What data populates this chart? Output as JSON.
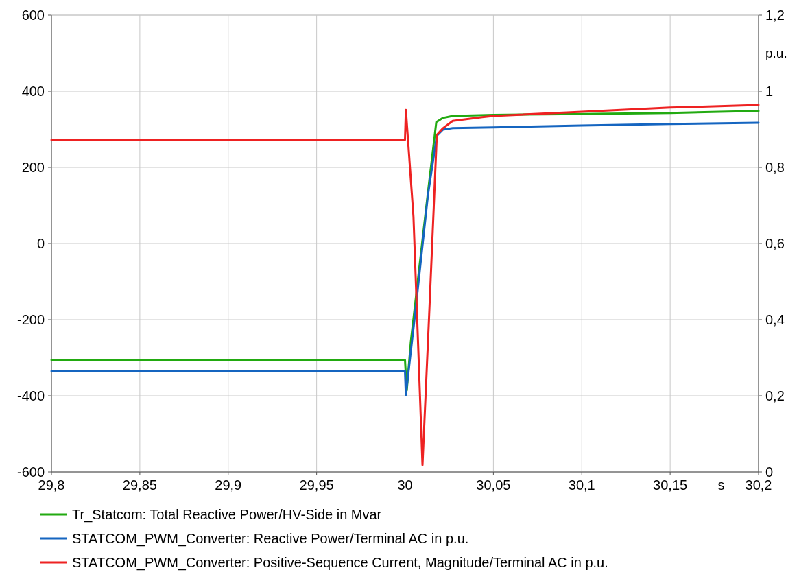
{
  "chart_data": {
    "type": "line",
    "xlabel": "s",
    "y2label": "p.u.",
    "xlim": [
      29.8,
      30.2
    ],
    "xticks": [
      {
        "value": 29.8,
        "label": "29,8"
      },
      {
        "value": 29.85,
        "label": "29,85"
      },
      {
        "value": 29.9,
        "label": "29,9"
      },
      {
        "value": 29.95,
        "label": "29,95"
      },
      {
        "value": 30,
        "label": "30"
      },
      {
        "value": 30.05,
        "label": "30,05"
      },
      {
        "value": 30.1,
        "label": "30,1"
      },
      {
        "value": 30.15,
        "label": "30,15"
      },
      {
        "value": 30.2,
        "label": "30,2"
      }
    ],
    "ylim": [
      -600,
      600
    ],
    "yticks": [
      -600,
      -400,
      -200,
      0,
      200,
      400,
      600
    ],
    "y2lim": [
      0,
      1.2
    ],
    "y2ticks": [
      0,
      {
        "value": 0.2,
        "label": "0,2"
      },
      {
        "value": 0.4,
        "label": "0,4"
      },
      {
        "value": 0.6,
        "label": "0,6"
      },
      {
        "value": 0.8,
        "label": "0,8"
      },
      1,
      {
        "value": 1.2,
        "label": "1,2"
      }
    ],
    "grid": true,
    "legend": "bottom",
    "line_style": "solid",
    "marker": "none",
    "series": [
      {
        "name": "Tr_Statcom: Total Reactive Power/HV-Side in Mvar",
        "color": "#22aa11",
        "x": [
          29.8,
          30.0,
          30.001,
          30.0033,
          30.013,
          30.0177,
          30.0215,
          30.027,
          30.05,
          30.1,
          30.15,
          30.2
        ],
        "values": [
          -306,
          -306,
          -386,
          -258,
          135,
          319,
          330,
          335,
          338,
          340,
          343,
          348
        ]
      },
      {
        "name": "STATCOM_PWM_Converter: Reactive Power/Terminal AC in p.u.",
        "color": "#1565c0",
        "axis": "y2",
        "x": [
          29.8,
          30.0,
          30.0005,
          30.006,
          30.013,
          30.018,
          30.0215,
          30.027,
          30.05,
          30.1,
          30.15,
          30.2
        ],
        "values": [
          0.265,
          0.265,
          0.202,
          0.427,
          0.728,
          0.883,
          0.899,
          0.903,
          0.905,
          0.91,
          0.914,
          0.917
        ]
      },
      {
        "name": "STATCOM_PWM_Converter: Positive-Sequence Current, Magnitude/Terminal AC in p.u.",
        "color": "#ee2222",
        "axis": "y2",
        "x": [
          29.8,
          30.0,
          30.0005,
          30.0048,
          30.0099,
          30.0138,
          30.018,
          30.0215,
          30.027,
          30.0437,
          30.05,
          30.1,
          30.15,
          30.2
        ],
        "values": [
          0.872,
          0.872,
          0.951,
          0.67,
          0.018,
          0.427,
          0.885,
          0.903,
          0.922,
          0.932,
          0.935,
          0.946,
          0.957,
          0.964
        ]
      }
    ]
  }
}
